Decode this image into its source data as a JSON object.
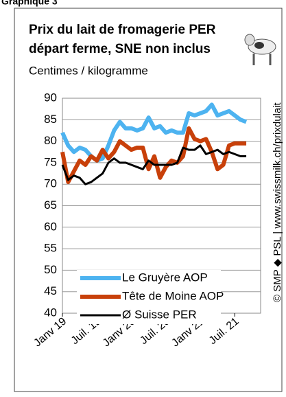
{
  "header": "Graphique 3",
  "credit": "© SMP ◆ PSL | www.swissmilk.ch/prixdulait",
  "chart_data": {
    "type": "line",
    "title": [
      "Prix du lait de fromagerie PER",
      "départ ferme, SNE non inclus"
    ],
    "subtitle": "Centimes / kilogramme",
    "categories": [
      "Janv 19",
      null,
      null,
      null,
      null,
      null,
      "Juil. 19",
      null,
      null,
      null,
      null,
      null,
      "Janv 20",
      null,
      null,
      null,
      null,
      null,
      "Juil. 20",
      null,
      null,
      null,
      null,
      null,
      "Janv 21",
      null,
      null,
      null,
      null,
      null,
      "Juil. 21",
      null,
      null
    ],
    "ylim": [
      40,
      90
    ],
    "yticks": [
      40,
      45,
      50,
      55,
      60,
      65,
      70,
      75,
      80,
      85,
      90
    ],
    "grid": true,
    "series": [
      {
        "name": "Le Gruyère AOP",
        "color": "#4db3f0",
        "values": [
          82,
          79,
          77.5,
          78.5,
          78,
          76.5,
          75.5,
          76,
          79,
          82.5,
          84.5,
          83,
          83,
          82.5,
          83,
          85.5,
          83,
          83.5,
          82,
          82.5,
          82,
          82,
          86.5,
          86,
          86.5,
          87,
          88.5,
          86,
          86.5,
          87,
          86,
          85,
          84.5
        ]
      },
      {
        "name": "Tête de Moine AOP",
        "color": "#c8400a",
        "values": [
          77.5,
          70.5,
          73,
          75.5,
          74.5,
          76.5,
          75.5,
          78,
          76,
          77.5,
          80,
          79,
          78,
          78.5,
          78.5,
          73.5,
          76.5,
          71.5,
          74,
          75.5,
          75,
          76.5,
          83,
          80.5,
          80,
          80.5,
          77.5,
          73.5,
          74.5,
          79,
          79.5,
          79.5,
          79.5
        ]
      },
      {
        "name": "Ø Suisse PER",
        "color": "#000000",
        "values": [
          74.5,
          71,
          72,
          71.5,
          70,
          70.5,
          71.5,
          72.5,
          75,
          76,
          75,
          75,
          74.5,
          74,
          73.5,
          75.5,
          74.5,
          74.5,
          74.5,
          74.5,
          75,
          78.5,
          78,
          78,
          79,
          77,
          77.5,
          78,
          77,
          77.5,
          77,
          76.5,
          76.5
        ]
      }
    ]
  }
}
